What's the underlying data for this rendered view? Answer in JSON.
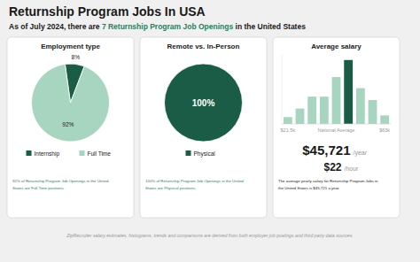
{
  "title": "Returnship Program Jobs In USA",
  "subtitle": [
    {
      "text": "As of July 2024, there are ",
      "color": "#1a1a1a"
    },
    {
      "text": "7 Returnship Program Job Openings",
      "color": "#2e7d5e"
    },
    {
      "text": " in the United States",
      "color": "#1a1a1a"
    }
  ],
  "note": "ZipRecruiter salary estimates, histograms, trends and comparisons are derived from both employer job postings and third party data sources.",
  "chart_data": [
    {
      "type": "pie",
      "title": "Employment type",
      "categories": [
        "Internship",
        "Full Time"
      ],
      "values": [
        8,
        92
      ],
      "value_labels": [
        "8%",
        "92%"
      ],
      "colors": [
        "#1a5c45",
        "#a8d5bf"
      ],
      "data_labels": true,
      "legend": "bottom",
      "annotation": "92% of Returnship Program Job Openings in the United\nStates are Full Time positions."
    },
    {
      "type": "pie",
      "title": "Remote vs. In-Person",
      "categories": [
        "Physical"
      ],
      "values": [
        100
      ],
      "value_labels": [
        "100%"
      ],
      "colors": [
        "#1a5c45"
      ],
      "data_labels": true,
      "legend": "bottom",
      "annotation": "100% of Returnship Program Job Openings in the United\nStates are Physical positions."
    },
    {
      "type": "bar",
      "title": "Average salary",
      "categories": [
        "$21.5k",
        null,
        null,
        null,
        "National Average",
        null,
        null,
        null,
        "$63k"
      ],
      "values": [
        0.8,
        1.8,
        3.2,
        3.2,
        5.5,
        7.5,
        4.2,
        2.8,
        1.0
      ],
      "colors": [
        "#a8d5bf",
        "#a8d5bf",
        "#a8d5bf",
        "#a8d5bf",
        "#a8d5bf",
        "#1a5c45",
        "#a8d5bf",
        "#a8d5bf",
        "#a8d5bf"
      ],
      "ylim": [
        0,
        8.1
      ],
      "tick_labels": "x",
      "annotations": [
        "$45,721",
        "/year",
        "$22",
        "/hour",
        "The average yearly salary for Returnship Program Jobs in\nthe United States is $45,721 a year."
      ]
    }
  ]
}
